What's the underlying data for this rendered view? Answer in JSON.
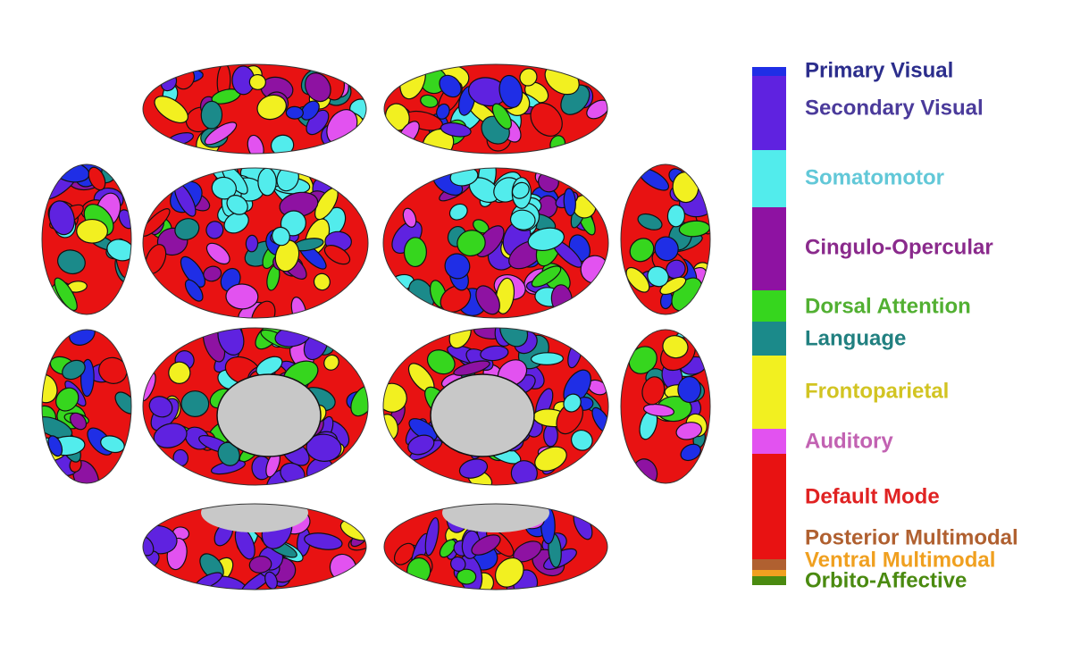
{
  "legend": {
    "items": [
      {
        "label": "Primary Visual",
        "color": "#1f2ee6",
        "text_color": "#2b2d8c"
      },
      {
        "label": "Secondary Visual",
        "color": "#5f22e0",
        "text_color": "#4b3b9b"
      },
      {
        "label": "Somatomotor",
        "color": "#52ecec",
        "text_color": "#62c8d8"
      },
      {
        "label": "Cingulo-Opercular",
        "color": "#8e12a2",
        "text_color": "#8a2a8c"
      },
      {
        "label": "Dorsal Attention",
        "color": "#36d61e",
        "text_color": "#52b032"
      },
      {
        "label": "Language",
        "color": "#1b8a8a",
        "text_color": "#218080"
      },
      {
        "label": "Frontoparietal",
        "color": "#f2f020",
        "text_color": "#d2c422"
      },
      {
        "label": "Auditory",
        "color": "#e252f0",
        "text_color": "#c262b2"
      },
      {
        "label": "Default Mode",
        "color": "#e81212",
        "text_color": "#e02222"
      },
      {
        "label": "Posterior Multimodal",
        "color": "#b06030",
        "text_color": "#b06030"
      },
      {
        "label": "Ventral Multimodal",
        "color": "#f0a020",
        "text_color": "#f0a020"
      },
      {
        "label": "Orbito-Affective",
        "color": "#4a8a10",
        "text_color": "#4a8a10"
      }
    ]
  }
}
